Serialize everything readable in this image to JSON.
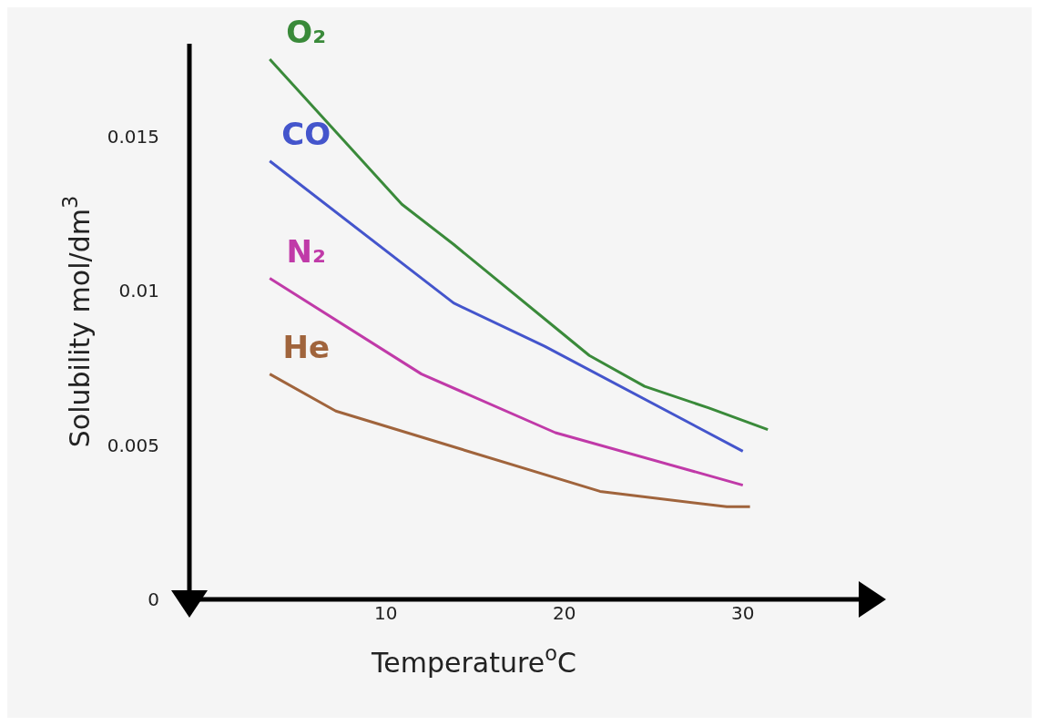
{
  "chart_data": {
    "type": "line",
    "xlabel": "Temperature$^{o}$C",
    "ylabel": "Solubility mol/dm$^{3}$",
    "xlim": [
      -1,
      37
    ],
    "ylim": [
      0,
      0.018
    ],
    "xticks": [
      10,
      20,
      30
    ],
    "yticks": [
      0,
      0.005,
      0.01,
      0.015
    ],
    "grid": false,
    "legend": false,
    "marker": "none",
    "line_style": "solid",
    "series": [
      {
        "name": "O₂",
        "color": "#3a8a3a",
        "x": [
          3.5,
          10.9,
          13.8,
          19.5,
          21.4,
          24.5,
          28.1,
          31.4
        ],
        "values": [
          0.0175,
          0.0128,
          0.0115,
          0.0088,
          0.0079,
          0.0069,
          0.0062,
          0.0055
        ]
      },
      {
        "name": "CO",
        "color": "#4455cc",
        "x": [
          3.5,
          13.8,
          18.9,
          30
        ],
        "values": [
          0.0142,
          0.0096,
          0.0082,
          0.0048
        ]
      },
      {
        "name": "N₂",
        "color": "#c03aa8",
        "x": [
          3.5,
          12.0,
          19.5,
          30
        ],
        "values": [
          0.0104,
          0.0073,
          0.0054,
          0.0037
        ]
      },
      {
        "name": "He",
        "color": "#a0643c",
        "x": [
          3.5,
          7.2,
          22,
          29.1,
          30.4
        ],
        "values": [
          0.0073,
          0.0061,
          0.0035,
          0.003,
          0.003
        ]
      }
    ]
  }
}
